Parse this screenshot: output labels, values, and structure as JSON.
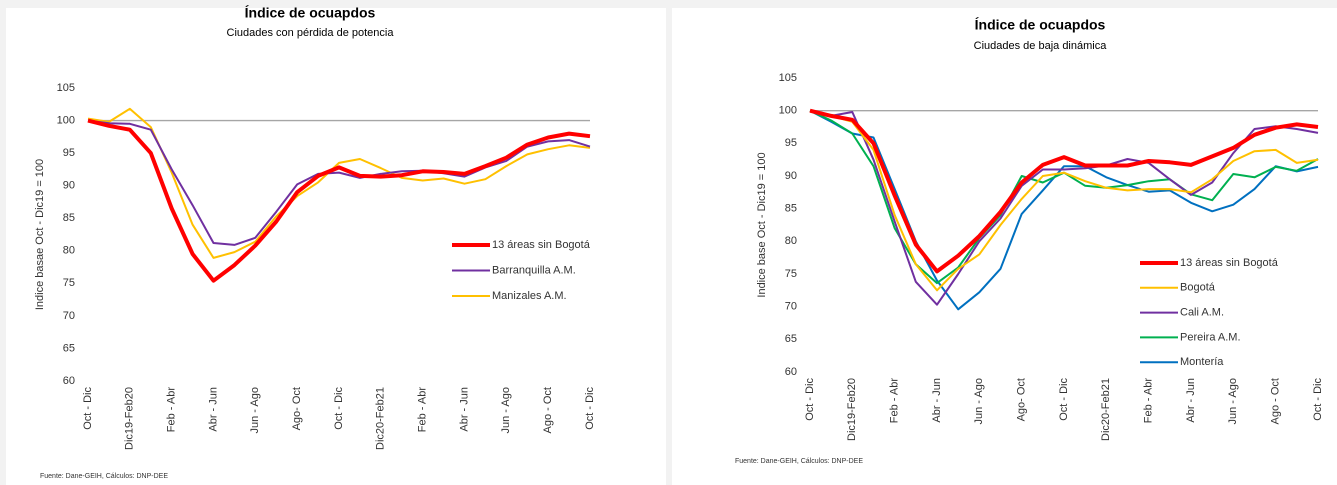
{
  "chart_data": [
    {
      "type": "line",
      "title": "Índice de ocuapdos",
      "subtitle": "Ciudades con pérdida de potencia",
      "y_label": "Indice basae Oct - Dic19 = 100",
      "source": "Fuente: Dane-GEIH, Cálculos: DNP-DEE",
      "categories": [
        "Oct - Dic",
        null,
        "Dic19-Feb20",
        null,
        "Feb - Abr",
        null,
        "Abr - Jun",
        null,
        "Jun - Ago",
        null,
        "Ago- Oct",
        null,
        "Oct - Dic",
        null,
        "Dic20-Feb21",
        null,
        "Feb - Abr",
        null,
        "Abr - Jun",
        null,
        "Jun - Ago",
        null,
        "Ago - Oct",
        null,
        "Oct - Dic"
      ],
      "ylim": [
        60,
        105
      ],
      "yticks": [
        60,
        65,
        70,
        75,
        80,
        85,
        90,
        95,
        100,
        105
      ],
      "hline": 100,
      "legend": "right",
      "series": [
        {
          "name": "13 áreas sin Bogotá",
          "color": "#ff0000",
          "values": [
            100,
            99.2,
            98.6,
            95,
            86.5,
            79.5,
            75.4,
            77.8,
            80.8,
            84.5,
            89,
            91.5,
            92.8,
            91.5,
            91.4,
            91.6,
            92.2,
            92.1,
            91.8,
            93,
            94.3,
            96.3,
            97.4,
            98,
            97.6
          ]
        },
        {
          "name": "Barranquilla A.M.",
          "color": "#7030a0",
          "values": [
            100,
            99.6,
            99.5,
            98.6,
            92.5,
            87,
            81.2,
            80.9,
            82,
            86,
            90.2,
            91.8,
            92,
            91.2,
            91.8,
            92.2,
            92.3,
            91.9,
            91.4,
            92.8,
            93.8,
            96,
            96.8,
            97,
            96
          ]
        },
        {
          "name": "Manizales A.M.",
          "color": "#ffc000",
          "values": [
            100.3,
            99.8,
            101.8,
            99,
            92,
            84,
            78.9,
            79.8,
            81.4,
            85.3,
            88.4,
            90.5,
            93.5,
            94.1,
            92.7,
            91.2,
            90.8,
            91.1,
            90.3,
            91,
            93,
            94.8,
            95.6,
            96.2,
            95.8
          ]
        }
      ]
    },
    {
      "type": "line",
      "title": "Índice de ocuapdos",
      "subtitle": "Ciudades de baja dinámica",
      "y_label": "Indice base Oct - Dic19 = 100",
      "source": "Fuente: Dane-GEIH, Cálculos: DNP-DEE",
      "categories": [
        "Oct - Dic",
        null,
        "Dic19-Feb20",
        null,
        "Feb - Abr",
        null,
        "Abr - Jun",
        null,
        "Jun - Ago",
        null,
        "Ago- Oct",
        null,
        "Oct - Dic",
        null,
        "Dic20-Feb21",
        null,
        "Feb - Abr",
        null,
        "Abr - Jun",
        null,
        "Jun - Ago",
        null,
        "Ago - Oct",
        null,
        "Oct - Dic"
      ],
      "ylim": [
        60,
        105
      ],
      "yticks": [
        60,
        65,
        70,
        75,
        80,
        85,
        90,
        95,
        100,
        105
      ],
      "hline": 100,
      "legend": "right",
      "series": [
        {
          "name": "13 áreas sin Bogotá",
          "color": "#ff0000",
          "values": [
            100,
            99.2,
            98.6,
            95,
            87,
            79.5,
            75.4,
            77.8,
            80.8,
            84.5,
            89,
            91.7,
            92.9,
            91.6,
            91.6,
            91.6,
            92.3,
            92.1,
            91.7,
            93,
            94.3,
            96.3,
            97.4,
            97.9,
            97.5
          ]
        },
        {
          "name": "Bogotá",
          "color": "#ffc000",
          "values": [
            100,
            99.2,
            98.3,
            94,
            84,
            76.5,
            72.5,
            75.8,
            78,
            82.5,
            86.5,
            90,
            90.5,
            89.2,
            88.2,
            87.8,
            88,
            88,
            87.5,
            89.5,
            92.3,
            93.8,
            94,
            92,
            92.5
          ]
        },
        {
          "name": "Cali A.M.",
          "color": "#7030a0",
          "values": [
            100,
            99.2,
            99.8,
            92.5,
            83,
            73.8,
            70.3,
            75,
            80,
            83.5,
            88.5,
            91,
            91,
            91.2,
            91.6,
            92.6,
            92,
            89.5,
            87.1,
            89,
            93.5,
            97.2,
            97.6,
            97.2,
            96.6
          ]
        },
        {
          "name": "Pereira A.M.",
          "color": "#00b050",
          "values": [
            100,
            98.5,
            96.5,
            91.5,
            82,
            76.5,
            73.6,
            76,
            80.5,
            84,
            90,
            89,
            90.5,
            88.5,
            88.2,
            88.6,
            89.2,
            89.5,
            87.2,
            86.3,
            90.3,
            89.8,
            91.4,
            90.8,
            92.6
          ]
        },
        {
          "name": "Montería",
          "color": "#0070c0",
          "values": [
            100,
            98.3,
            96.5,
            95.9,
            88,
            80,
            74,
            69.6,
            72.2,
            75.8,
            84.2,
            87.8,
            91.5,
            91.5,
            89.8,
            88.6,
            87.6,
            87.8,
            85.9,
            84.6,
            85.6,
            88,
            91.5,
            90.7,
            91.4
          ]
        }
      ]
    }
  ]
}
